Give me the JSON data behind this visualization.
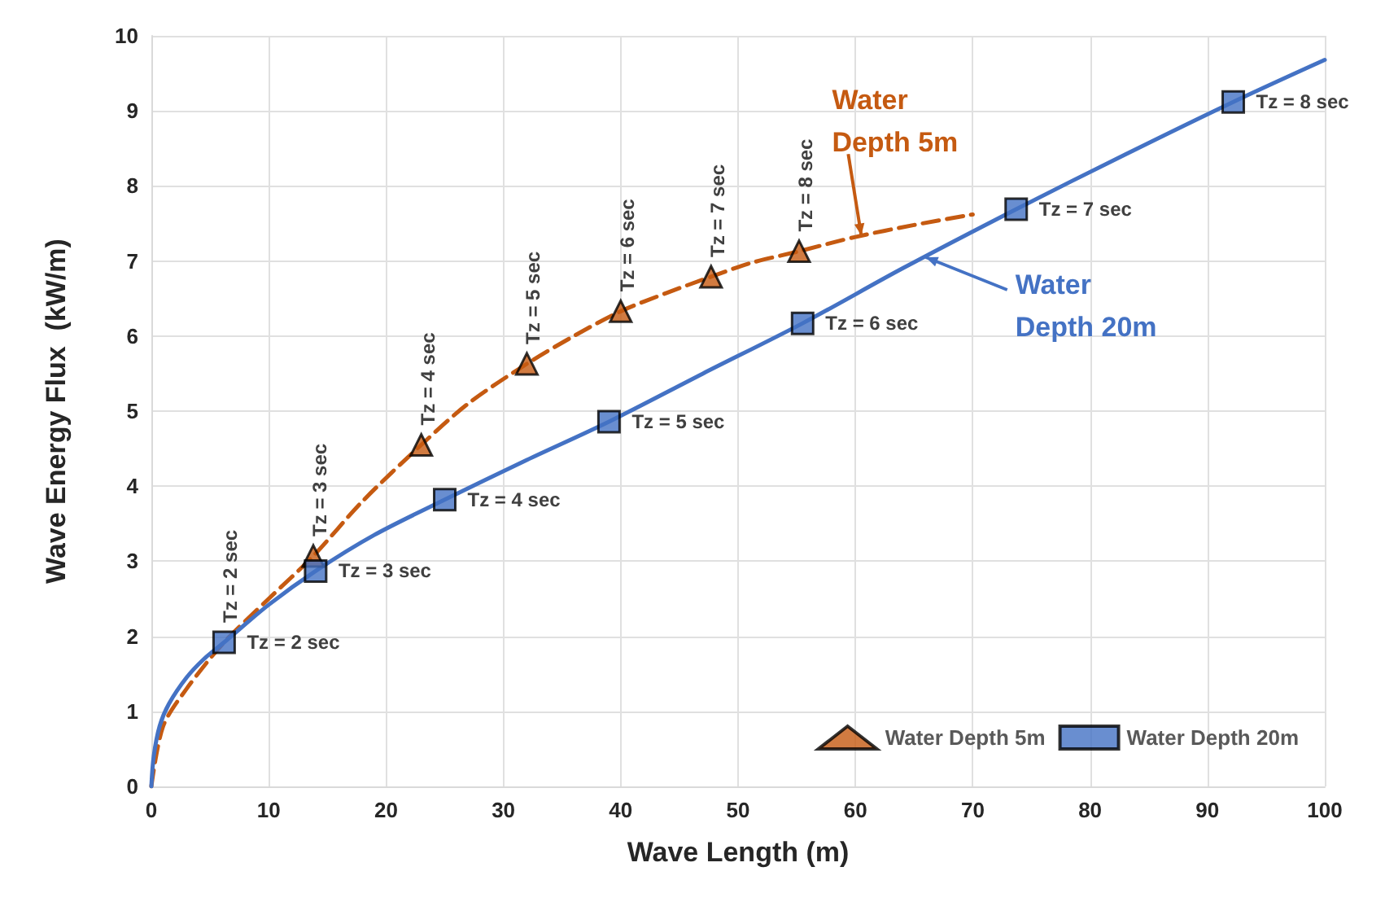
{
  "chart_data": {
    "type": "line",
    "xlabel": "Wave Length (m)",
    "ylabel": "Wave Energy Flux  (kW/m)",
    "xlim": [
      0,
      100
    ],
    "xticks": [
      0,
      10,
      20,
      30,
      40,
      50,
      60,
      70,
      80,
      90,
      100
    ],
    "ylim": [
      0,
      10
    ],
    "yticks": [
      0,
      1,
      2,
      3,
      4,
      5,
      6,
      7,
      8,
      9,
      10
    ],
    "grid": true,
    "legend": "bottom right",
    "series": [
      {
        "color": "#c55a11",
        "line_style": "dashed",
        "x": [
          0,
          1,
          3,
          6.2,
          10,
          13.8,
          18,
          23,
          27,
          32,
          36,
          40,
          44,
          47.7,
          51,
          55.2,
          60,
          65,
          70
        ],
        "values": [
          0,
          0.8,
          1.3,
          1.92,
          2.5,
          3.07,
          3.8,
          4.55,
          5.1,
          5.63,
          6.0,
          6.33,
          6.58,
          6.79,
          6.97,
          7.13,
          7.32,
          7.48,
          7.62
        ]
      },
      {
        "color": "#4472c4",
        "line_style": "solid",
        "x": [
          0,
          0.2,
          0.7,
          1.5,
          3,
          4.5,
          6.2,
          10,
          14,
          19,
          25,
          32,
          39,
          47,
          55.5,
          64,
          73.7,
          83,
          92.2,
          100
        ],
        "values": [
          0,
          0.4,
          0.8,
          1.1,
          1.45,
          1.7,
          1.92,
          2.42,
          2.87,
          3.35,
          3.82,
          4.35,
          4.86,
          5.5,
          6.17,
          6.9,
          7.69,
          8.42,
          9.12,
          9.68
        ]
      },
      {
        "name": "Water Depth 5m",
        "type": "scatter",
        "color": "#c55a11",
        "marker": "triangle",
        "x": [
          13.8,
          23,
          32,
          40,
          47.7,
          55.2
        ],
        "values": [
          3.07,
          4.55,
          5.63,
          6.33,
          6.79,
          7.13
        ]
      },
      {
        "name": "Water Depth 20m",
        "type": "scatter",
        "color": "#4472c4",
        "marker": "square",
        "x": [
          6.2,
          14,
          25,
          39,
          55.5,
          73.7,
          92.2
        ],
        "values": [
          1.92,
          2.87,
          3.82,
          4.86,
          6.17,
          7.69,
          9.12
        ]
      }
    ],
    "annotations": [
      {
        "text": "Tz = 2 sec",
        "x": 6.2,
        "y": 1.92
      },
      {
        "text": "Tz = 3 sec",
        "x": 13.8,
        "y": 3.07
      },
      {
        "text": "Tz = 4 sec",
        "x": 23,
        "y": 4.55
      },
      {
        "text": "Tz = 5 sec",
        "x": 32,
        "y": 5.63
      },
      {
        "text": "Tz = 6 sec",
        "x": 40,
        "y": 6.33
      },
      {
        "text": "Tz = 7 sec",
        "x": 47.7,
        "y": 6.79
      },
      {
        "text": "Tz = 8 sec",
        "x": 55.2,
        "y": 7.13
      },
      {
        "text": "Tz = 2 sec",
        "x": 6.2,
        "y": 1.92
      },
      {
        "text": "Tz = 3 sec",
        "x": 14,
        "y": 2.87
      },
      {
        "text": "Tz = 4 sec",
        "x": 25,
        "y": 3.82
      },
      {
        "text": "Tz = 5 sec",
        "x": 39,
        "y": 4.86
      },
      {
        "text": "Tz = 6 sec",
        "x": 55.5,
        "y": 6.17
      },
      {
        "text": "Tz = 7 sec",
        "x": 73.7,
        "y": 7.69
      },
      {
        "text": "Tz = 8 sec",
        "x": 92.2,
        "y": 9.12
      },
      {
        "text": "Water\nDepth 5m",
        "x": 60.5,
        "y": 7.34
      },
      {
        "text": "Water\nDepth 20m",
        "x": 66,
        "y": 7.05
      }
    ]
  }
}
